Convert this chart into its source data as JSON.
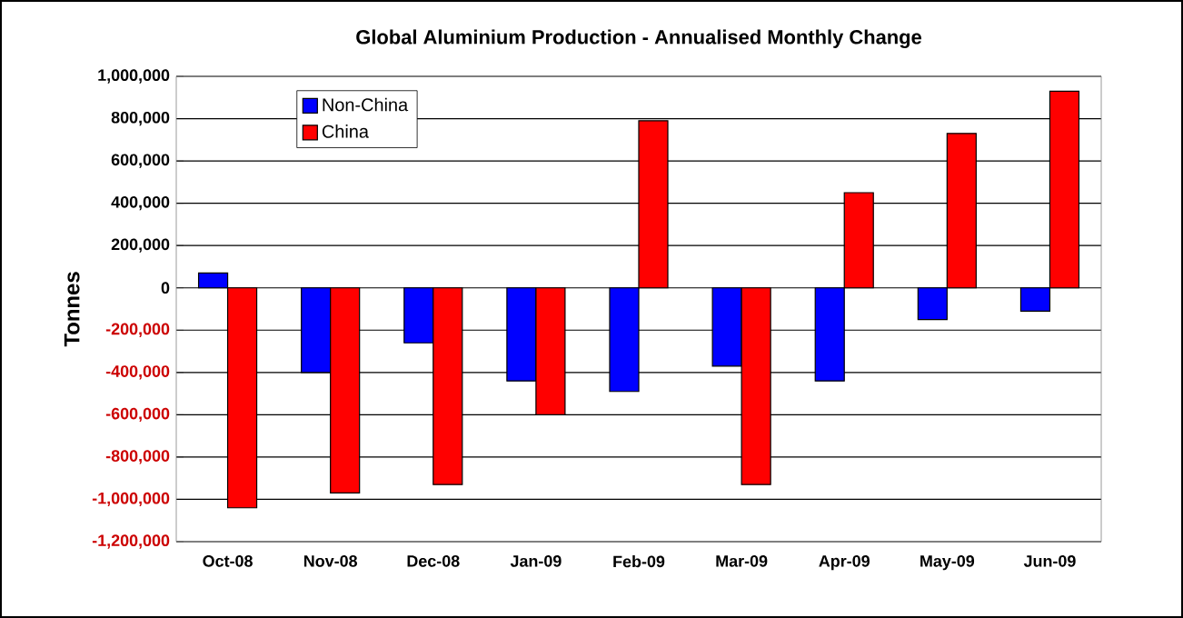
{
  "chart_data": {
    "type": "bar",
    "title": "Global Aluminium Production - Annualised Monthly Change",
    "ylabel": "Tonnes",
    "categories": [
      "Oct-08",
      "Nov-08",
      "Dec-08",
      "Jan-09",
      "Feb-09",
      "Mar-09",
      "Apr-09",
      "May-09",
      "Jun-09"
    ],
    "series": [
      {
        "name": "Non-China",
        "color": "#0000ff",
        "values": [
          70000,
          -400000,
          -260000,
          -440000,
          -490000,
          -370000,
          -440000,
          -150000,
          -110000
        ]
      },
      {
        "name": "China",
        "color": "#ff0000",
        "values": [
          -1040000,
          -970000,
          -930000,
          -600000,
          790000,
          -930000,
          450000,
          730000,
          930000
        ]
      }
    ],
    "ylim": [
      -1200000,
      1000000
    ],
    "yticks": [
      {
        "value": -1200000,
        "label": "-1,200,000"
      },
      {
        "value": -1000000,
        "label": "-1,000,000"
      },
      {
        "value": -800000,
        "label": "-800,000"
      },
      {
        "value": -600000,
        "label": "-600,000"
      },
      {
        "value": -400000,
        "label": "-400,000"
      },
      {
        "value": -200000,
        "label": "-200,000"
      },
      0,
      {
        "value": 200000,
        "label": "200,000"
      },
      {
        "value": 400000,
        "label": "400,000"
      },
      {
        "value": 600000,
        "label": "600,000"
      },
      {
        "value": 800000,
        "label": "800,000"
      },
      {
        "value": 1000000,
        "label": "1,000,000"
      }
    ],
    "grid": "y",
    "legend": "top left"
  }
}
